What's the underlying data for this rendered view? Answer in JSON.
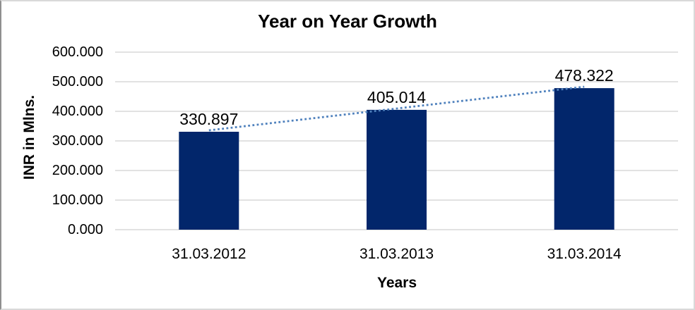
{
  "chart_data": {
    "type": "bar",
    "title": "Year on Year Growth",
    "xlabel": "Years",
    "ylabel": "INR in Mlns.",
    "categories": [
      "31.03.2012",
      "31.03.2013",
      "31.03.2014"
    ],
    "values": [
      330.897,
      405.014,
      478.322
    ],
    "data_labels": [
      "330.897",
      "405.014",
      "478.322"
    ],
    "y_tick_labels": [
      "600.000",
      "500.000",
      "400.000",
      "300.000",
      "200.000",
      "100.000",
      "0.000"
    ],
    "y_tick_values": [
      600,
      500,
      400,
      300,
      200,
      100,
      0
    ],
    "ylim": [
      0,
      600
    ],
    "grid": true,
    "legend_position": "none",
    "trendline": {
      "type": "linear",
      "style": "dotted",
      "color": "#4f81bd"
    },
    "colors": {
      "bar": "#02266b",
      "gridline": "#d9d9d9",
      "text": "#000000",
      "background": "#ffffff"
    }
  }
}
